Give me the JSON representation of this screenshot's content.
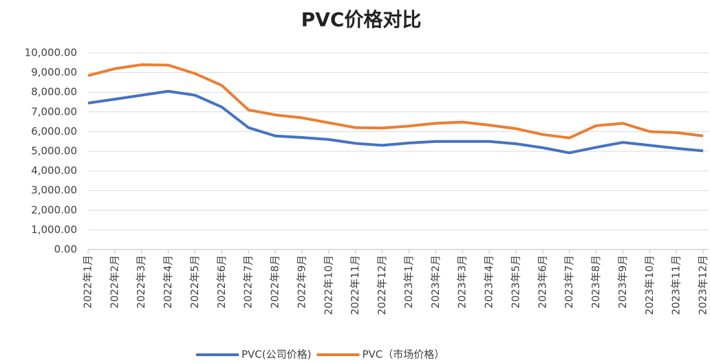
{
  "chart_data": {
    "type": "line",
    "title": "PVC价格对比",
    "categories": [
      "2022年1月",
      "2022年2月",
      "2022年3月",
      "2022年4月",
      "2022年5月",
      "2022年6月",
      "2022年7月",
      "2022年8月",
      "2022年9月",
      "2022年10月",
      "2022年11月",
      "2022年12月",
      "2023年1月",
      "2023年2月",
      "2023年3月",
      "2023年4月",
      "2023年5月",
      "2023年6月",
      "2023年7月",
      "2023年8月",
      "2023年9月",
      "2023年10月",
      "2023年11月",
      "2023年12月"
    ],
    "series": [
      {
        "name": "PVC(公司价格)",
        "color": "#4472c4",
        "values": [
          7450,
          7650,
          7850,
          8050,
          7850,
          7250,
          6200,
          5780,
          5700,
          5600,
          5400,
          5300,
          5420,
          5500,
          5500,
          5500,
          5380,
          5180,
          4920,
          5200,
          5450,
          5300,
          5150,
          5020
        ]
      },
      {
        "name": "PVC（市场价格）",
        "color": "#ed7d31",
        "values": [
          8850,
          9200,
          9400,
          9380,
          8950,
          8350,
          7100,
          6850,
          6700,
          6450,
          6200,
          6180,
          6280,
          6420,
          6480,
          6330,
          6150,
          5850,
          5680,
          6300,
          6420,
          6000,
          5950,
          5780
        ]
      }
    ],
    "ylim": [
      0,
      10000
    ],
    "yticks": [
      {
        "value": 0,
        "label": "0.00"
      },
      {
        "value": 1000,
        "label": "1,000.00"
      },
      {
        "value": 2000,
        "label": "2,000.00"
      },
      {
        "value": 3000,
        "label": "3,000.00"
      },
      {
        "value": 4000,
        "label": "4,000.00"
      },
      {
        "value": 5000,
        "label": "5,000.00"
      },
      {
        "value": 6000,
        "label": "6,000.00"
      },
      {
        "value": 7000,
        "label": "7,000.00"
      },
      {
        "value": 8000,
        "label": "8,000.00"
      },
      {
        "value": 9000,
        "label": "9,000.00"
      },
      {
        "value": 10000,
        "label": "10,000.00"
      }
    ],
    "grid": true,
    "legend": "bottom"
  }
}
